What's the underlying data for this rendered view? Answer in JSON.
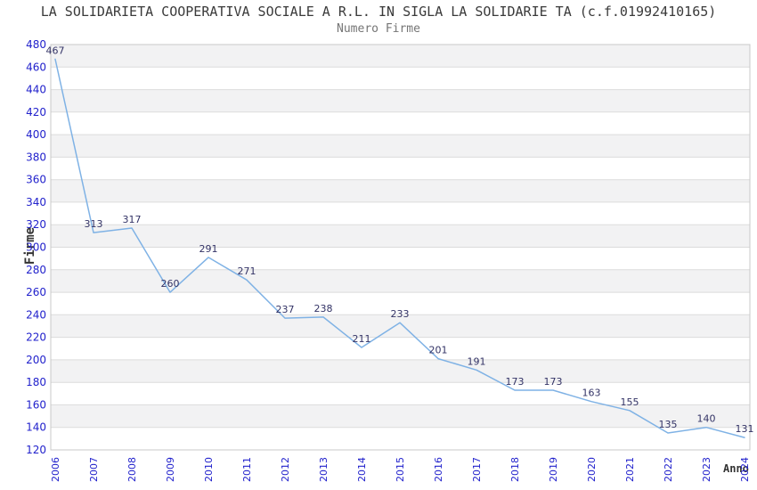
{
  "title": "LA SOLIDARIETA COOPERATIVA SOCIALE A R.L. IN SIGLA LA SOLIDARIE TA (c.f.01992410165)",
  "subtitle": "Numero Firme",
  "chart_data": {
    "type": "line",
    "title": "LA SOLIDARIETA COOPERATIVA SOCIALE A R.L. IN SIGLA LA SOLIDARIE TA (c.f.01992410165)",
    "subtitle": "Numero Firme",
    "xlabel": "Anno",
    "ylabel": "Firme",
    "x": [
      2006,
      2007,
      2008,
      2009,
      2010,
      2011,
      2012,
      2013,
      2014,
      2015,
      2016,
      2017,
      2018,
      2019,
      2020,
      2021,
      2022,
      2023,
      2024
    ],
    "values": [
      467,
      313,
      317,
      260,
      291,
      271,
      237,
      238,
      211,
      233,
      201,
      191,
      173,
      173,
      163,
      155,
      135,
      140,
      131
    ],
    "series_name": "Numero Firme",
    "ylim": [
      120,
      480
    ],
    "ytick_step": 20,
    "legend": "none",
    "grid": "horizontal gridlines with alternating shaded bands",
    "data_labels_visible": true,
    "colors": {
      "line": "#7FB2E5",
      "data_label": "#333366",
      "tick_label": "#2222CC",
      "band_gray": "#F2F2F3",
      "band_white": "#FFFFFF",
      "gridline": "#DCDCDC",
      "plot_border": "#C8C8C8",
      "title": "#3A3A3A",
      "subtitle": "#757575",
      "axis_title": "#333333",
      "background": "#FFFFFF"
    }
  }
}
